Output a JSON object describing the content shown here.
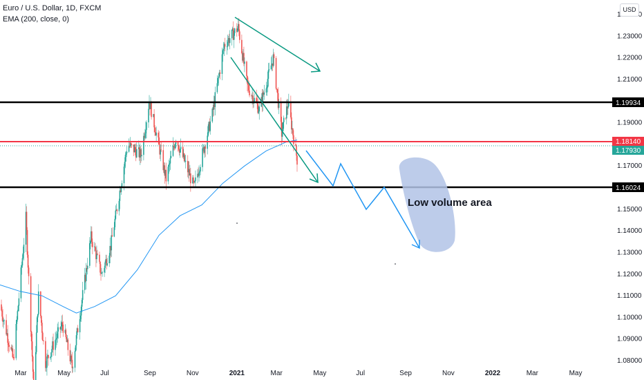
{
  "legend": {
    "symbol": "Euro / U.S. Dollar, 1D, FXCM",
    "indicator": "EMA (200, close, 0)"
  },
  "currency_button": "USD",
  "colors": {
    "up": "#26a69a",
    "down": "#ef5350",
    "ema": "#2196f3",
    "horizontal_black": "#000000",
    "horizontal_red": "#f23645",
    "arrow_teal": "#089981",
    "arrow_blue": "#2196f3",
    "price_tag": "#26a69a",
    "blob": "#b2c3e6"
  },
  "annotation_text": "Low volume area",
  "chart_data": {
    "type": "candlestick",
    "title": "Euro / U.S. Dollar, 1D, FXCM",
    "y_ticks": [
      "1.24000",
      "1.23000",
      "1.22000",
      "1.21000",
      "1.19000",
      "1.17000",
      "1.15000",
      "1.14000",
      "1.13000",
      "1.12000",
      "1.11000",
      "1.10000",
      "1.09000",
      "1.08000"
    ],
    "x_ticks": [
      "Mar",
      "May",
      "Jul",
      "Sep",
      "Nov",
      "2021",
      "Mar",
      "May",
      "Jul",
      "Sep",
      "Nov",
      "2022",
      "Mar",
      "May"
    ],
    "price_tags": [
      {
        "value": "1.19934",
        "style": "black"
      },
      {
        "value": "1.18140",
        "style": "red"
      },
      {
        "value": "1.17930",
        "style": "teal"
      },
      {
        "value": "1.16024",
        "style": "black"
      }
    ],
    "horizontal_levels": [
      1.19934,
      1.1814,
      1.16024
    ],
    "ylim": [
      1.078,
      1.242
    ],
    "current_price": 1.1793,
    "price_path": [
      [
        "2020-02-01",
        1.106
      ],
      [
        "2020-02-20",
        1.08
      ],
      [
        "2020-03-09",
        1.146
      ],
      [
        "2020-03-20",
        1.068
      ],
      [
        "2020-03-27",
        1.11
      ],
      [
        "2020-04-06",
        1.079
      ],
      [
        "2020-04-30",
        1.097
      ],
      [
        "2020-05-14",
        1.077
      ],
      [
        "2020-06-10",
        1.137
      ],
      [
        "2020-06-25",
        1.12
      ],
      [
        "2020-07-08",
        1.133
      ],
      [
        "2020-08-01",
        1.18
      ],
      [
        "2020-08-20",
        1.175
      ],
      [
        "2020-09-01",
        1.2
      ],
      [
        "2020-09-25",
        1.164
      ],
      [
        "2020-10-09",
        1.183
      ],
      [
        "2020-11-04",
        1.16
      ],
      [
        "2020-11-30",
        1.194
      ],
      [
        "2020-12-17",
        1.226
      ],
      [
        "2021-01-06",
        1.234
      ],
      [
        "2021-01-19",
        1.207
      ],
      [
        "2021-02-05",
        1.196
      ],
      [
        "2021-02-25",
        1.22
      ],
      [
        "2021-03-09",
        1.185
      ],
      [
        "2021-03-18",
        1.199
      ],
      [
        "2021-03-31",
        1.173
      ]
    ],
    "ema_path": [
      [
        "2020-02-01",
        1.115
      ],
      [
        "2020-03-01",
        1.112
      ],
      [
        "2020-04-01",
        1.11
      ],
      [
        "2020-05-01",
        1.105
      ],
      [
        "2020-05-20",
        1.102
      ],
      [
        "2020-06-15",
        1.105
      ],
      [
        "2020-07-15",
        1.11
      ],
      [
        "2020-08-15",
        1.122
      ],
      [
        "2020-09-15",
        1.138
      ],
      [
        "2020-10-15",
        1.147
      ],
      [
        "2020-11-15",
        1.152
      ],
      [
        "2020-12-15",
        1.162
      ],
      [
        "2021-01-15",
        1.17
      ],
      [
        "2021-02-15",
        1.177
      ],
      [
        "2021-03-15",
        1.181
      ],
      [
        "2021-03-31",
        1.182
      ]
    ]
  }
}
